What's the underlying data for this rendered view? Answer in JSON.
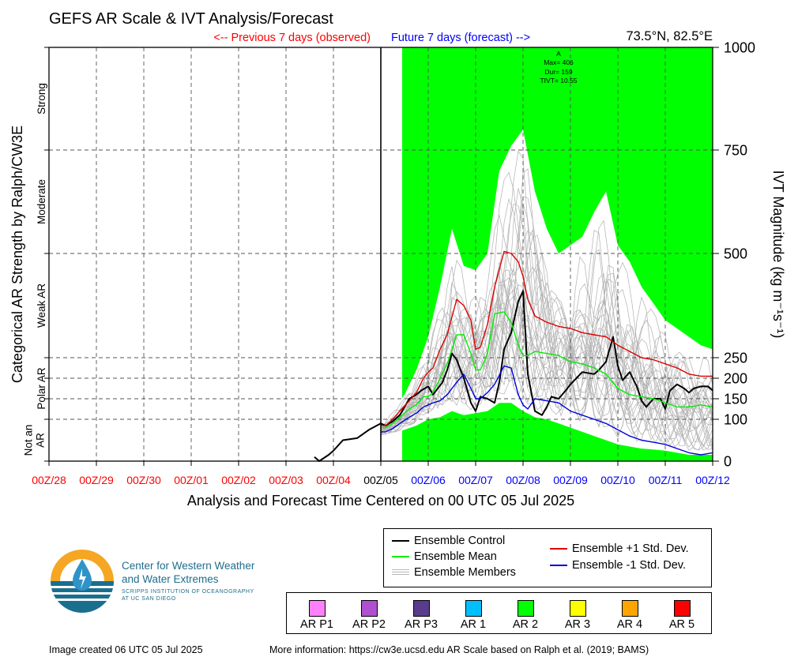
{
  "title": "GEFS AR Scale & IVT Analysis/Forecast",
  "header": {
    "previous_label": "<-- Previous 7 days (observed)",
    "future_label": "Future 7 days (forecast) -->",
    "location": "73.5°N, 82.5°E"
  },
  "colors": {
    "observed": "#ff0000",
    "forecast": "#0000ff",
    "ar2": "#00ff00",
    "control": "#000000",
    "mean": "#00ee00",
    "plus_std": "#dd0000",
    "minus_std": "#0000dd",
    "members": "#b0b0b0"
  },
  "annotation": {
    "lines": [
      "A",
      "Max= 406",
      "Dur= 159",
      "TIVT= 10.55"
    ]
  },
  "footer": {
    "created": "Image created 06 UTC 05 Jul 2025",
    "more_info": "More information: https://cw3e.ucsd.edu AR Scale based on Ralph et al. (2019; BAMS)"
  },
  "logo": {
    "name_line1": "Center for Western Weather",
    "name_line2": "and Water Extremes",
    "sub_line1": "SCRIPPS INSTITUTION OF OCEANOGRAPHY",
    "sub_line2": "AT UC SAN DIEGO"
  },
  "legend": {
    "control": "Ensemble Control",
    "mean": "Ensemble Mean",
    "members": "Ensemble Members",
    "plus_std": "Ensemble +1 Std. Dev.",
    "minus_std": "Ensemble -1 Std. Dev."
  },
  "ar_scale_legend": [
    {
      "label": "AR P1",
      "color": "#ff80ff"
    },
    {
      "label": "AR P2",
      "color": "#b050d0"
    },
    {
      "label": "AR P3",
      "color": "#5a3c8c"
    },
    {
      "label": "AR 1",
      "color": "#00bfff"
    },
    {
      "label": "AR 2",
      "color": "#00ff00"
    },
    {
      "label": "AR 3",
      "color": "#ffff00"
    },
    {
      "label": "AR 4",
      "color": "#ffa500"
    },
    {
      "label": "AR 5",
      "color": "#ff0000"
    }
  ],
  "chart_data": {
    "type": "line",
    "xlabel": "Analysis and Forecast Time Centered on 00 UTC 05 Jul 2025",
    "ylabel_left": "Categorical AR Strength by Ralph/CW3E",
    "ylabel_right": "IVT Magnitude (kg m⁻¹s⁻¹)",
    "x_ticks": [
      "00Z/28",
      "00Z/29",
      "00Z/30",
      "00Z/01",
      "00Z/02",
      "00Z/03",
      "00Z/04",
      "00Z/05",
      "00Z/06",
      "00Z/07",
      "00Z/08",
      "00Z/09",
      "00Z/10",
      "00Z/11",
      "00Z/12"
    ],
    "x_tick_status": [
      "observed",
      "observed",
      "observed",
      "observed",
      "observed",
      "observed",
      "observed",
      "analysis",
      "forecast",
      "forecast",
      "forecast",
      "forecast",
      "forecast",
      "forecast",
      "forecast"
    ],
    "x_range_days": [
      -7,
      7
    ],
    "y_ticks": [
      0,
      100,
      150,
      200,
      250,
      500,
      750,
      1000
    ],
    "ylim": [
      0,
      1000
    ],
    "categories_left": [
      {
        "label": "Not an AR",
        "lines": [
          "Not an",
          "AR"
        ],
        "range": [
          0,
          100
        ]
      },
      {
        "label": "Polar AR",
        "lines": [
          "Polar AR"
        ],
        "range": [
          100,
          250
        ]
      },
      {
        "label": "Weak AR",
        "lines": [
          "Weak AR"
        ],
        "range": [
          250,
          500
        ]
      },
      {
        "label": "Moderate",
        "lines": [
          "Moderate"
        ],
        "range": [
          500,
          750
        ]
      },
      {
        "label": "Strong",
        "lines": [
          "Strong"
        ],
        "range": [
          750,
          1000
        ]
      }
    ],
    "ar2_shading_start_day": 0.45,
    "series": [
      {
        "name": "Ensemble Control",
        "color": "#000000",
        "x": [
          -1.4,
          -1.3,
          -1.1,
          -1.0,
          -0.8,
          -0.5,
          -0.25,
          0,
          0.1,
          0.25,
          0.4,
          0.6,
          0.75,
          0.85,
          1.0,
          1.1,
          1.3,
          1.4,
          1.5,
          1.6,
          1.75,
          1.9,
          2.0,
          2.1,
          2.25,
          2.4,
          2.5,
          2.6,
          2.75,
          2.9,
          3.0,
          3.1,
          3.25,
          3.4,
          3.5,
          3.6,
          3.75,
          3.9,
          4.0,
          4.25,
          4.5,
          4.6,
          4.75,
          4.9,
          5.0,
          5.1,
          5.25,
          5.4,
          5.5,
          5.6,
          5.75,
          5.9,
          6.0,
          6.1,
          6.25,
          6.4,
          6.5,
          6.6,
          6.75,
          6.9,
          7.0
        ],
        "y": [
          10,
          0,
          15,
          25,
          50,
          55,
          75,
          90,
          85,
          95,
          110,
          150,
          160,
          170,
          180,
          160,
          190,
          220,
          260,
          245,
          200,
          140,
          120,
          155,
          150,
          140,
          190,
          270,
          310,
          385,
          410,
          210,
          120,
          110,
          130,
          155,
          150,
          170,
          185,
          215,
          210,
          220,
          240,
          300,
          230,
          195,
          215,
          180,
          145,
          130,
          150,
          150,
          125,
          170,
          185,
          175,
          165,
          175,
          180,
          180,
          170
        ]
      },
      {
        "name": "Ensemble Mean",
        "color": "#00ee00",
        "x": [
          0,
          0.1,
          0.25,
          0.4,
          0.6,
          0.75,
          0.9,
          1.0,
          1.1,
          1.25,
          1.4,
          1.6,
          1.75,
          1.9,
          2.0,
          2.1,
          2.25,
          2.4,
          2.6,
          2.75,
          2.9,
          3.0,
          3.1,
          3.25,
          3.5,
          3.75,
          4.0,
          4.25,
          4.5,
          4.75,
          5.0,
          5.25,
          5.5,
          5.75,
          6.0,
          6.25,
          6.5,
          6.75,
          7.0
        ],
        "y": [
          80,
          80,
          90,
          105,
          125,
          135,
          155,
          155,
          165,
          200,
          235,
          305,
          305,
          260,
          220,
          220,
          260,
          355,
          360,
          335,
          280,
          255,
          255,
          265,
          260,
          255,
          240,
          235,
          225,
          210,
          175,
          160,
          155,
          150,
          140,
          130,
          130,
          135,
          130
        ]
      },
      {
        "name": "Ensemble +1 Std. Dev.",
        "color": "#dd0000",
        "x": [
          0,
          0.1,
          0.25,
          0.4,
          0.6,
          0.75,
          0.9,
          1.0,
          1.1,
          1.25,
          1.4,
          1.6,
          1.75,
          1.9,
          2.0,
          2.1,
          2.25,
          2.4,
          2.6,
          2.75,
          2.9,
          3.0,
          3.1,
          3.25,
          3.5,
          3.75,
          4.0,
          4.25,
          4.5,
          4.75,
          5.0,
          5.25,
          5.5,
          5.75,
          6.0,
          6.25,
          6.5,
          6.75,
          7.0
        ],
        "y": [
          85,
          85,
          100,
          120,
          145,
          165,
          200,
          215,
          225,
          270,
          305,
          390,
          375,
          340,
          270,
          275,
          330,
          420,
          505,
          500,
          480,
          445,
          390,
          350,
          335,
          325,
          320,
          310,
          305,
          300,
          280,
          265,
          250,
          245,
          235,
          225,
          210,
          205,
          205
        ]
      },
      {
        "name": "Ensemble -1 Std. Dev.",
        "color": "#0000dd",
        "x": [
          0,
          0.1,
          0.25,
          0.4,
          0.6,
          0.75,
          0.9,
          1.0,
          1.1,
          1.25,
          1.4,
          1.6,
          1.75,
          1.9,
          2.0,
          2.1,
          2.25,
          2.4,
          2.6,
          2.75,
          2.9,
          3.0,
          3.1,
          3.25,
          3.5,
          3.75,
          4.0,
          4.25,
          4.5,
          4.75,
          5.0,
          5.25,
          5.5,
          5.75,
          6.0,
          6.25,
          6.5,
          6.75,
          7.0
        ],
        "y": [
          70,
          70,
          78,
          90,
          105,
          115,
          130,
          135,
          140,
          145,
          160,
          190,
          210,
          175,
          150,
          150,
          165,
          185,
          230,
          225,
          160,
          135,
          125,
          150,
          145,
          140,
          120,
          110,
          100,
          90,
          75,
          60,
          50,
          45,
          40,
          30,
          20,
          15,
          20
        ]
      },
      {
        "name": "Ensemble Members",
        "color": "#b0b0b0",
        "envelope_x": [
          0,
          0.25,
          0.5,
          0.75,
          1.0,
          1.25,
          1.5,
          1.75,
          2.0,
          2.25,
          2.5,
          2.75,
          3.0,
          3.25,
          3.5,
          3.75,
          4.0,
          4.25,
          4.5,
          4.75,
          5.0,
          5.25,
          5.5,
          5.75,
          6.0,
          6.25,
          6.5,
          6.75,
          7.0
        ],
        "envelope_max": [
          90,
          120,
          160,
          220,
          300,
          420,
          560,
          470,
          460,
          500,
          700,
          760,
          800,
          650,
          560,
          500,
          520,
          540,
          600,
          650,
          520,
          480,
          420,
          380,
          340,
          320,
          300,
          280,
          270
        ],
        "envelope_min": [
          60,
          65,
          75,
          85,
          100,
          105,
          120,
          110,
          115,
          120,
          140,
          140,
          120,
          105,
          100,
          90,
          80,
          70,
          60,
          50,
          40,
          35,
          30,
          28,
          25,
          20,
          15,
          15,
          15
        ]
      }
    ]
  }
}
